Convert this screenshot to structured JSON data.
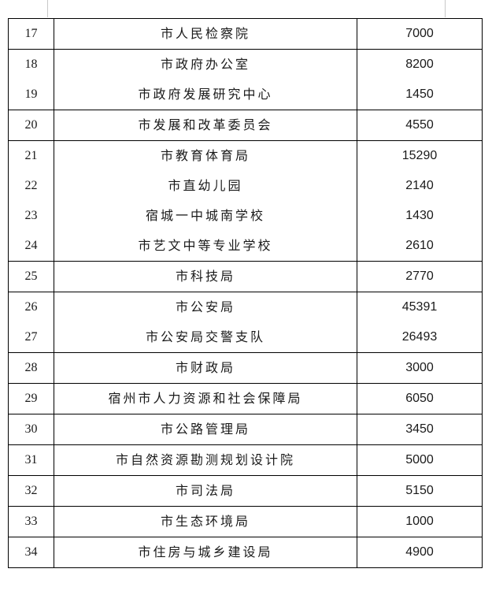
{
  "table": {
    "rows": [
      {
        "num": "17",
        "name": "市人民检察院",
        "amount": "7000",
        "top": true,
        "bottom": true
      },
      {
        "num": "18",
        "name": "市政府办公室",
        "amount": "8200",
        "top": true,
        "bottom": false
      },
      {
        "num": "19",
        "name": "市政府发展研究中心",
        "amount": "1450",
        "top": false,
        "bottom": true
      },
      {
        "num": "20",
        "name": "市发展和改革委员会",
        "amount": "4550",
        "top": true,
        "bottom": true
      },
      {
        "num": "21",
        "name": "市教育体育局",
        "amount": "15290",
        "top": true,
        "bottom": false
      },
      {
        "num": "22",
        "name": "市直幼儿园",
        "amount": "2140",
        "top": false,
        "bottom": false
      },
      {
        "num": "23",
        "name": "宿城一中城南学校",
        "amount": "1430",
        "top": false,
        "bottom": false
      },
      {
        "num": "24",
        "name": "市艺文中等专业学校",
        "amount": "2610",
        "top": false,
        "bottom": true
      },
      {
        "num": "25",
        "name": "市科技局",
        "amount": "2770",
        "top": true,
        "bottom": true
      },
      {
        "num": "26",
        "name": "市公安局",
        "amount": "45391",
        "top": true,
        "bottom": false
      },
      {
        "num": "27",
        "name": "市公安局交警支队",
        "amount": "26493",
        "top": false,
        "bottom": true
      },
      {
        "num": "28",
        "name": "市财政局",
        "amount": "3000",
        "top": true,
        "bottom": true
      },
      {
        "num": "29",
        "name": "宿州市人力资源和社会保障局",
        "amount": "6050",
        "top": true,
        "bottom": true
      },
      {
        "num": "30",
        "name": "市公路管理局",
        "amount": "3450",
        "top": true,
        "bottom": true
      },
      {
        "num": "31",
        "name": "市自然资源勘测规划设计院",
        "amount": "5000",
        "top": true,
        "bottom": true
      },
      {
        "num": "32",
        "name": "市司法局",
        "amount": "5150",
        "top": true,
        "bottom": true
      },
      {
        "num": "33",
        "name": "市生态环境局",
        "amount": "1000",
        "top": true,
        "bottom": true
      },
      {
        "num": "34",
        "name": "市住房与城乡建设局",
        "amount": "4900",
        "top": true,
        "bottom": true
      }
    ]
  }
}
